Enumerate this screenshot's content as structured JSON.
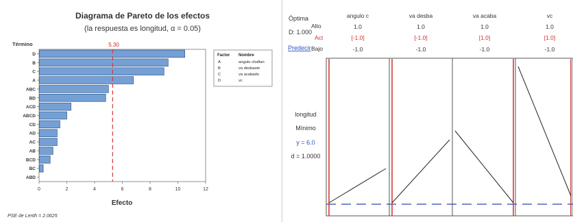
{
  "pareto": {
    "title": "Diagrama de Pareto de los efectos",
    "subtitle": "(la respuesta es longitud, α = 0.05)",
    "term_label": "Término",
    "threshold_label": "5.30",
    "threshold_value": 5.3,
    "x_axis_label": "Efecto",
    "x_ticks": [
      "0",
      "2",
      "4",
      "6",
      "8",
      "10",
      "12"
    ],
    "x_tick_values": [
      0,
      2,
      4,
      6,
      8,
      10,
      12
    ],
    "footer_note": "PSE de Lenth = 2.0625",
    "legend": {
      "header_factor": "Factor",
      "header_name": "Nombre",
      "rows": [
        {
          "factor": "A",
          "name": "angulo chaflan"
        },
        {
          "factor": "B",
          "name": "va desbaste"
        },
        {
          "factor": "C",
          "name": "va acabado"
        },
        {
          "factor": "D",
          "name": "vc"
        }
      ]
    },
    "colors": {
      "bar_fill": "#75a0d5",
      "bar_stroke": "#31588a",
      "threshold": "#d63636",
      "label_red": "#d12a2a"
    }
  },
  "chart_data": {
    "type": "bar",
    "orientation": "horizontal",
    "categories": [
      "D",
      "B",
      "C",
      "A",
      "ABC",
      "BD",
      "ACD",
      "ABCD",
      "CD",
      "AD",
      "AC",
      "AB",
      "BCD",
      "BC",
      "ABD"
    ],
    "values": [
      10.5,
      9.3,
      9.0,
      6.8,
      5.0,
      4.8,
      2.3,
      2.0,
      1.5,
      1.3,
      1.3,
      1.0,
      0.8,
      0.3,
      0.0
    ],
    "title": "Diagrama de Pareto de los efectos",
    "subtitle": "(la respuesta es longitud, α = 0.05)",
    "xlabel": "Efecto",
    "ylabel": "Término",
    "xlim": [
      0,
      12
    ],
    "reference_line": {
      "value": 5.3,
      "label": "5.30"
    },
    "footnote": "PSE de Lenth = 2.0625"
  },
  "optimizer": {
    "optimal_label": "Óptima",
    "d_label": "D: 1.000",
    "predict_link": "Predecir",
    "row_labels": {
      "high": "Alto",
      "actual": "Act",
      "low": "Bajo"
    },
    "response_label": "longitud",
    "goal_label": "Mínimo",
    "y_value": "y = 6.0",
    "d_value": "d = 1.0000",
    "factors": [
      {
        "name": "angulo c",
        "high": "1.0",
        "actual": "[-1.0]",
        "low": "-1.0"
      },
      {
        "name": "va desba",
        "high": "1.0",
        "actual": "[-1.0]",
        "low": "-1.0"
      },
      {
        "name": "va acaba",
        "high": "1.0",
        "actual": "[1.0]",
        "low": "-1.0"
      },
      {
        "name": "vc",
        "high": "1.0",
        "actual": "[1.0]",
        "low": "-1.0"
      }
    ],
    "colors": {
      "actual_red": "#d42b2b",
      "dash_blue": "#2846b8",
      "link_blue": "#2d53c7"
    }
  }
}
